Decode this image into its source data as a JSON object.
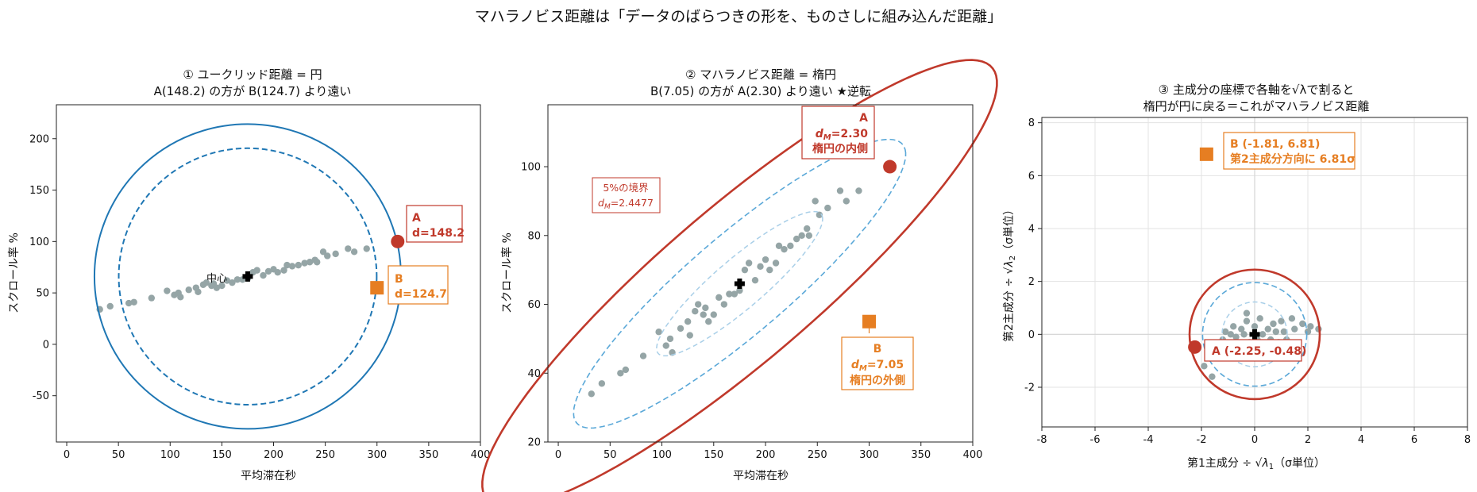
{
  "suptitle": "マハラノビス距離は「データのばらつきの形を、ものさしに組み込んだ距離」",
  "colors": {
    "blue": "#1f77b4",
    "dashBlue": "#5aa8d8",
    "lightBlue": "#a9cfe8",
    "red": "#c0392b",
    "orange": "#e67e22",
    "dots": "#95a5a6",
    "grid": "#e3e3e3"
  },
  "annotations": {
    "p1_center": "中心",
    "p1_A_line1": "A",
    "p1_A_line2": "d=148.2",
    "p1_B_line1": "B",
    "p1_B_line2": "d=124.7",
    "p2_A_line1": "A",
    "p2_A_line2_pre": "d",
    "p2_A_line2_sub": "M",
    "p2_A_line2_post": "=2.30",
    "p2_A_line3": "楕円の内側",
    "p2_B_line1": "B",
    "p2_B_line2_pre": "d",
    "p2_B_line2_sub": "M",
    "p2_B_line2_post": "=7.05",
    "p2_B_line3": "楕円の外側",
    "p2_bound_line1": "5%の境界",
    "p2_bound_line2_pre": "d",
    "p2_bound_line2_sub": "M",
    "p2_bound_line2_post": "=2.4477",
    "p3_B_line1": "B (-1.81, 6.81)",
    "p3_B_line2": "第2主成分方向に 6.81σ",
    "p3_A_label": "A (-2.25, -0.48)"
  },
  "chart_data": [
    {
      "type": "scatter",
      "title": "① ユークリッド距離 = 円",
      "subtitle": "A(148.2) の方が B(124.7) より遠い",
      "xlabel": "平均滞在秒",
      "ylabel": "スクロール率 %",
      "xlim": [
        -10,
        400
      ],
      "ylim": [
        -95,
        233
      ],
      "xticks": [
        0,
        50,
        100,
        150,
        200,
        250,
        300,
        350,
        400
      ],
      "yticks": [
        -50,
        0,
        50,
        100,
        150,
        200
      ],
      "grid": false,
      "center": {
        "label": "中心",
        "x": 175,
        "y": 66
      },
      "circles": [
        {
          "style": "solid",
          "radius": 148.2
        },
        {
          "style": "dashed",
          "radius": 124.7
        }
      ],
      "points_A": {
        "name": "A",
        "x": 320,
        "y": 100,
        "distance": 148.2
      },
      "points_B": {
        "name": "B",
        "x": 300,
        "y": 55,
        "distance": 124.7
      },
      "data": [
        [
          32,
          34
        ],
        [
          42,
          37
        ],
        [
          60,
          40
        ],
        [
          65,
          41
        ],
        [
          82,
          45
        ],
        [
          97,
          52
        ],
        [
          104,
          48
        ],
        [
          108,
          50
        ],
        [
          110,
          46
        ],
        [
          118,
          53
        ],
        [
          125,
          55
        ],
        [
          127,
          51
        ],
        [
          132,
          58
        ],
        [
          135,
          60
        ],
        [
          140,
          57
        ],
        [
          142,
          59
        ],
        [
          145,
          55
        ],
        [
          150,
          57
        ],
        [
          155,
          62
        ],
        [
          160,
          60
        ],
        [
          165,
          63
        ],
        [
          170,
          63
        ],
        [
          175,
          64
        ],
        [
          180,
          70
        ],
        [
          184,
          72
        ],
        [
          190,
          67
        ],
        [
          195,
          71
        ],
        [
          200,
          73
        ],
        [
          204,
          70
        ],
        [
          210,
          72
        ],
        [
          213,
          77
        ],
        [
          218,
          76
        ],
        [
          224,
          77
        ],
        [
          230,
          79
        ],
        [
          235,
          80
        ],
        [
          240,
          82
        ],
        [
          242,
          80
        ],
        [
          248,
          90
        ],
        [
          252,
          86
        ],
        [
          260,
          88
        ],
        [
          272,
          93
        ],
        [
          278,
          90
        ],
        [
          290,
          93
        ]
      ]
    },
    {
      "type": "scatter",
      "title": "② マハラノビス距離 = 楕円",
      "subtitle": "B(7.05) の方が A(2.30) より遠い ★逆転",
      "xlabel": "平均滞在秒",
      "ylabel": "スクロール率 %",
      "xlim": [
        -10,
        400
      ],
      "ylim": [
        20,
        118
      ],
      "xticks": [
        0,
        50,
        100,
        150,
        200,
        250,
        300,
        350,
        400
      ],
      "yticks": [
        20,
        40,
        60,
        80,
        100
      ],
      "grid": false,
      "center": {
        "x": 175,
        "y": 66
      },
      "ellipse_boundary_dM": 2.4477,
      "points_A": {
        "name": "A",
        "x": 320,
        "y": 100,
        "dM": 2.3
      },
      "points_B": {
        "name": "B",
        "x": 300,
        "y": 55,
        "dM": 7.05
      },
      "data": [
        [
          32,
          34
        ],
        [
          42,
          37
        ],
        [
          60,
          40
        ],
        [
          65,
          41
        ],
        [
          82,
          45
        ],
        [
          97,
          52
        ],
        [
          104,
          48
        ],
        [
          108,
          50
        ],
        [
          110,
          46
        ],
        [
          118,
          53
        ],
        [
          125,
          55
        ],
        [
          127,
          51
        ],
        [
          132,
          58
        ],
        [
          135,
          60
        ],
        [
          140,
          57
        ],
        [
          142,
          59
        ],
        [
          145,
          55
        ],
        [
          150,
          57
        ],
        [
          155,
          62
        ],
        [
          160,
          60
        ],
        [
          165,
          63
        ],
        [
          170,
          63
        ],
        [
          175,
          64
        ],
        [
          180,
          70
        ],
        [
          184,
          72
        ],
        [
          190,
          67
        ],
        [
          195,
          71
        ],
        [
          200,
          73
        ],
        [
          204,
          70
        ],
        [
          210,
          72
        ],
        [
          213,
          77
        ],
        [
          218,
          76
        ],
        [
          224,
          77
        ],
        [
          230,
          79
        ],
        [
          235,
          80
        ],
        [
          240,
          82
        ],
        [
          242,
          80
        ],
        [
          248,
          90
        ],
        [
          252,
          86
        ],
        [
          260,
          88
        ],
        [
          272,
          93
        ],
        [
          278,
          90
        ],
        [
          290,
          93
        ]
      ]
    },
    {
      "type": "scatter",
      "title": "③ 主成分の座標で各軸を√λで割ると",
      "subtitle": "楕円が円に戻る＝これがマハラノビス距離",
      "xlabel_pre": "第1主成分 ÷ √",
      "xlabel_sym": "λ",
      "xlabel_sub": "1",
      "xlabel_post": "（σ単位）",
      "ylabel_pre": "第2主成分 ÷ √",
      "ylabel_sym": "λ",
      "ylabel_sub": "2",
      "ylabel_post": "（σ単位）",
      "xlim": [
        -8,
        8
      ],
      "ylim": [
        -3.5,
        8.2
      ],
      "xticks": [
        -8,
        -6,
        -4,
        -2,
        0,
        2,
        4,
        6,
        8
      ],
      "yticks": [
        -2,
        0,
        2,
        4,
        6,
        8
      ],
      "grid": true,
      "boundary_radius": 2.4477,
      "points_A": {
        "name": "A",
        "x": -2.25,
        "y": -0.48
      },
      "points_B": {
        "name": "B",
        "x": -1.81,
        "y": 6.81
      },
      "data": [
        [
          -1.6,
          -1.6
        ],
        [
          -1.9,
          -1.2
        ],
        [
          -1.7,
          -0.4
        ],
        [
          -1.4,
          -0.9
        ],
        [
          -1.2,
          -0.2
        ],
        [
          -1.1,
          0.1
        ],
        [
          -0.9,
          0.0
        ],
        [
          -0.8,
          0.3
        ],
        [
          -0.7,
          -0.1
        ],
        [
          -0.6,
          -0.4
        ],
        [
          -0.5,
          0.2
        ],
        [
          -0.4,
          0.0
        ],
        [
          -0.3,
          0.5
        ],
        [
          -0.2,
          -0.3
        ],
        [
          0.0,
          0.3
        ],
        [
          0.1,
          -0.2
        ],
        [
          0.2,
          0.6
        ],
        [
          0.3,
          0.0
        ],
        [
          0.4,
          -0.5
        ],
        [
          0.5,
          0.2
        ],
        [
          0.6,
          -0.2
        ],
        [
          0.7,
          0.4
        ],
        [
          0.8,
          0.1
        ],
        [
          0.9,
          -0.3
        ],
        [
          1.0,
          0.5
        ],
        [
          1.1,
          0.1
        ],
        [
          1.2,
          -0.2
        ],
        [
          1.4,
          0.6
        ],
        [
          1.5,
          0.2
        ],
        [
          1.6,
          -0.4
        ],
        [
          1.8,
          0.4
        ],
        [
          2.0,
          0.1
        ],
        [
          2.1,
          0.3
        ],
        [
          2.4,
          0.2
        ],
        [
          -0.9,
          -0.6
        ],
        [
          0.8,
          -0.6
        ],
        [
          -0.3,
          0.8
        ]
      ]
    }
  ]
}
